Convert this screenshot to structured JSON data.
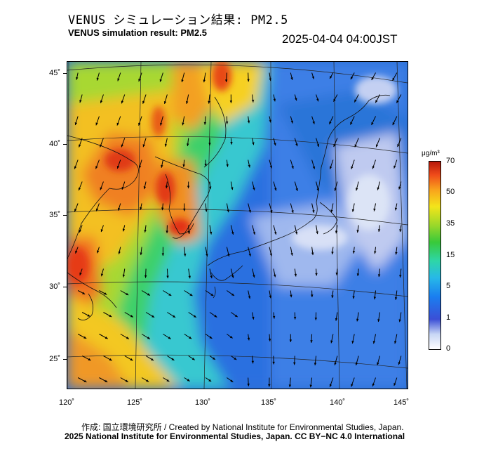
{
  "title_jp": "VENUS シミュレーション結果: PM2.5",
  "title_en": "VENUS simulation result: PM2.5",
  "timestamp": "2025-04-04 04:00JST",
  "map": {
    "lat_labels": [
      "45˚",
      "40˚",
      "35˚",
      "30˚",
      "25˚"
    ],
    "lon_labels": [
      "120˚",
      "125˚",
      "130˚",
      "135˚",
      "140˚",
      "145˚"
    ]
  },
  "colorbar": {
    "unit": "μg/m³",
    "labels": [
      "70",
      "50",
      "35",
      "15",
      "5",
      "1",
      "0"
    ]
  },
  "credits": {
    "line1": "作成: 国立環境研究所 / Created by National Institute for Environmental Studies, Japan.",
    "line2": "2025 National Institute for Environmental Studies, Japan. CC BY−NC 4.0 International"
  }
}
